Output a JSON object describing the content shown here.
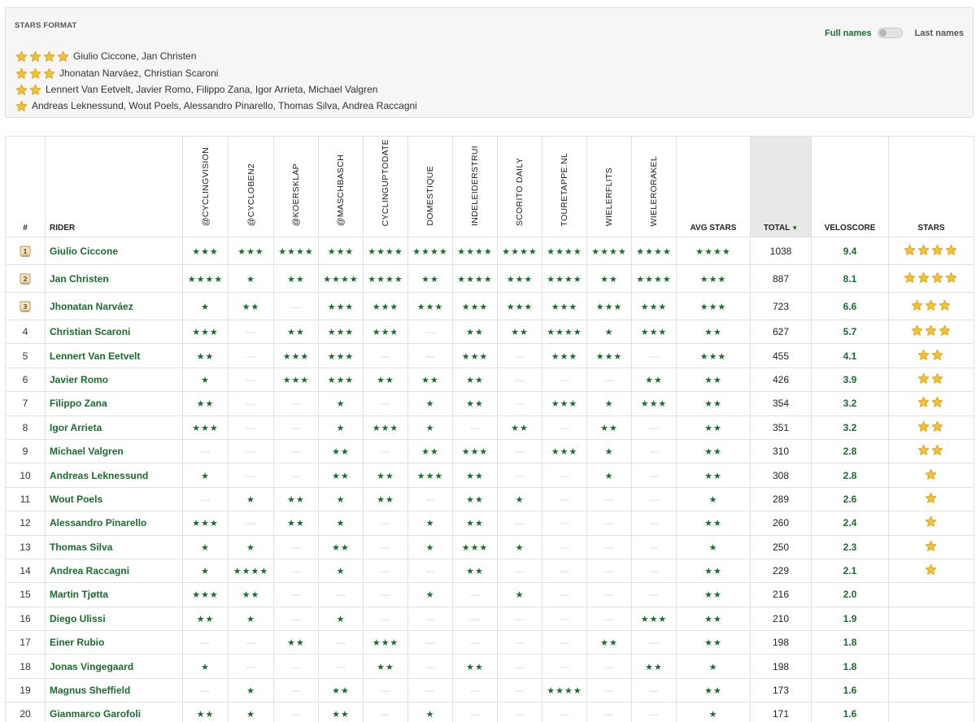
{
  "format": {
    "title": "STARS FORMAT",
    "toggle": {
      "full_label": "Full names",
      "last_label": "Last names",
      "state": "off"
    },
    "tiers": [
      {
        "stars": 4,
        "riders": "Giulio Ciccone, Jan Christen"
      },
      {
        "stars": 3,
        "riders": "Jhonatan Narváez, Christian Scaroni"
      },
      {
        "stars": 2,
        "riders": "Lennert Van Eetvelt, Javier Romo, Filippo Zana, Igor Arrieta, Michael Valgren"
      },
      {
        "stars": 1,
        "riders": "Andreas Leknessund, Wout Poels, Alessandro Pinarello, Thomas Silva, Andrea Raccagni"
      }
    ]
  },
  "colors": {
    "green": "#1a6b2e",
    "gold": "#f2c230",
    "dash": "#cfcfcf",
    "total_header_bg": "#e8e8e8"
  },
  "icons": {
    "gold_star": "gold-star-icon",
    "green_star": "★",
    "podium": "podium-trophy-icon"
  },
  "table": {
    "headers": {
      "rank": "#",
      "rider": "RIDER",
      "sources": [
        "@CYCLINGVISION",
        "@CYCLOBEN2",
        "@KOERSKLAP",
        "@MASCHBASCH",
        "CYCLINGUPTODATE",
        "DOMESTIQUE",
        "INDELEIDERSTRUI",
        "SCORITO DAILY",
        "TOURETAPPE.NL",
        "WIELERFLITS",
        "WIELERORAKEL"
      ],
      "avg_stars": "AVG STARS",
      "total": "TOTAL",
      "total_sort": "▼",
      "veloscore": "VELOSCORE",
      "stars": "STARS"
    },
    "rows": [
      {
        "rank": "1",
        "podium": "1",
        "rider": "Giulio Ciccone",
        "ratings": [
          3,
          3,
          4,
          3,
          4,
          4,
          4,
          4,
          4,
          4,
          4
        ],
        "avg": 4,
        "total": "1038",
        "velo": "9.4",
        "stars": 4
      },
      {
        "rank": "2",
        "podium": "2",
        "rider": "Jan Christen",
        "ratings": [
          4,
          1,
          2,
          4,
          4,
          2,
          4,
          3,
          4,
          2,
          4
        ],
        "avg": 3,
        "total": "887",
        "velo": "8.1",
        "stars": 4
      },
      {
        "rank": "3",
        "podium": "3",
        "rider": "Jhonatan Narváez",
        "ratings": [
          1,
          2,
          0,
          3,
          3,
          3,
          3,
          3,
          3,
          3,
          3
        ],
        "avg": 3,
        "total": "723",
        "velo": "6.6",
        "stars": 3
      },
      {
        "rank": "4",
        "rider": "Christian Scaroni",
        "ratings": [
          3,
          0,
          2,
          3,
          3,
          0,
          2,
          2,
          4,
          1,
          3
        ],
        "avg": 2,
        "total": "627",
        "velo": "5.7",
        "stars": 3
      },
      {
        "rank": "5",
        "rider": "Lennert Van Eetvelt",
        "ratings": [
          2,
          0,
          3,
          3,
          0,
          0,
          3,
          0,
          3,
          3,
          0
        ],
        "avg": 3,
        "total": "455",
        "velo": "4.1",
        "stars": 2
      },
      {
        "rank": "6",
        "rider": "Javier Romo",
        "ratings": [
          1,
          0,
          3,
          3,
          2,
          2,
          2,
          0,
          0,
          0,
          2
        ],
        "avg": 2,
        "total": "426",
        "velo": "3.9",
        "stars": 2
      },
      {
        "rank": "7",
        "rider": "Filippo Zana",
        "ratings": [
          2,
          0,
          0,
          1,
          0,
          1,
          2,
          0,
          3,
          1,
          3
        ],
        "avg": 2,
        "total": "354",
        "velo": "3.2",
        "stars": 2
      },
      {
        "rank": "8",
        "rider": "Igor Arrieta",
        "ratings": [
          3,
          0,
          0,
          1,
          3,
          1,
          0,
          2,
          0,
          2,
          0
        ],
        "avg": 2,
        "total": "351",
        "velo": "3.2",
        "stars": 2
      },
      {
        "rank": "9",
        "rider": "Michael Valgren",
        "ratings": [
          0,
          0,
          0,
          2,
          0,
          2,
          3,
          0,
          3,
          1,
          0
        ],
        "avg": 2,
        "total": "310",
        "velo": "2.8",
        "stars": 2
      },
      {
        "rank": "10",
        "rider": "Andreas Leknessund",
        "ratings": [
          1,
          0,
          0,
          2,
          2,
          3,
          2,
          0,
          0,
          1,
          0
        ],
        "avg": 2,
        "total": "308",
        "velo": "2.8",
        "stars": 1
      },
      {
        "rank": "11",
        "rider": "Wout Poels",
        "ratings": [
          0,
          1,
          2,
          1,
          2,
          0,
          2,
          1,
          0,
          0,
          0
        ],
        "avg": 1,
        "total": "289",
        "velo": "2.6",
        "stars": 1
      },
      {
        "rank": "12",
        "rider": "Alessandro Pinarello",
        "ratings": [
          3,
          0,
          2,
          1,
          0,
          1,
          2,
          0,
          0,
          0,
          0
        ],
        "avg": 2,
        "total": "260",
        "velo": "2.4",
        "stars": 1
      },
      {
        "rank": "13",
        "rider": "Thomas Silva",
        "ratings": [
          1,
          1,
          0,
          2,
          0,
          1,
          3,
          1,
          0,
          0,
          0
        ],
        "avg": 1,
        "total": "250",
        "velo": "2.3",
        "stars": 1
      },
      {
        "rank": "14",
        "rider": "Andrea Raccagni",
        "ratings": [
          1,
          4,
          0,
          1,
          0,
          0,
          2,
          0,
          0,
          0,
          0
        ],
        "avg": 2,
        "total": "229",
        "velo": "2.1",
        "stars": 1
      },
      {
        "rank": "15",
        "rider": "Martin Tjøtta",
        "ratings": [
          3,
          2,
          0,
          0,
          0,
          1,
          0,
          1,
          0,
          0,
          0
        ],
        "avg": 2,
        "total": "216",
        "velo": "2.0",
        "stars": 0
      },
      {
        "rank": "16",
        "rider": "Diego Ulissi",
        "ratings": [
          2,
          1,
          0,
          1,
          0,
          0,
          0,
          0,
          0,
          0,
          3
        ],
        "avg": 2,
        "total": "210",
        "velo": "1.9",
        "stars": 0
      },
      {
        "rank": "17",
        "rider": "Einer Rubio",
        "ratings": [
          0,
          0,
          2,
          0,
          3,
          0,
          0,
          0,
          0,
          2,
          0
        ],
        "avg": 2,
        "total": "198",
        "velo": "1.8",
        "stars": 0
      },
      {
        "rank": "18",
        "rider": "Jonas Vingegaard",
        "ratings": [
          1,
          0,
          0,
          0,
          2,
          0,
          2,
          0,
          0,
          0,
          2
        ],
        "avg": 1,
        "total": "198",
        "velo": "1.8",
        "stars": 0
      },
      {
        "rank": "19",
        "rider": "Magnus Sheffield",
        "ratings": [
          0,
          1,
          0,
          2,
          0,
          0,
          0,
          0,
          4,
          0,
          0
        ],
        "avg": 2,
        "total": "173",
        "velo": "1.6",
        "stars": 0
      },
      {
        "rank": "20",
        "rider": "Gianmarco Garofoli",
        "ratings": [
          2,
          1,
          0,
          2,
          0,
          1,
          0,
          0,
          0,
          0,
          0
        ],
        "avg": 1,
        "total": "171",
        "velo": "1.6",
        "stars": 0
      }
    ]
  }
}
